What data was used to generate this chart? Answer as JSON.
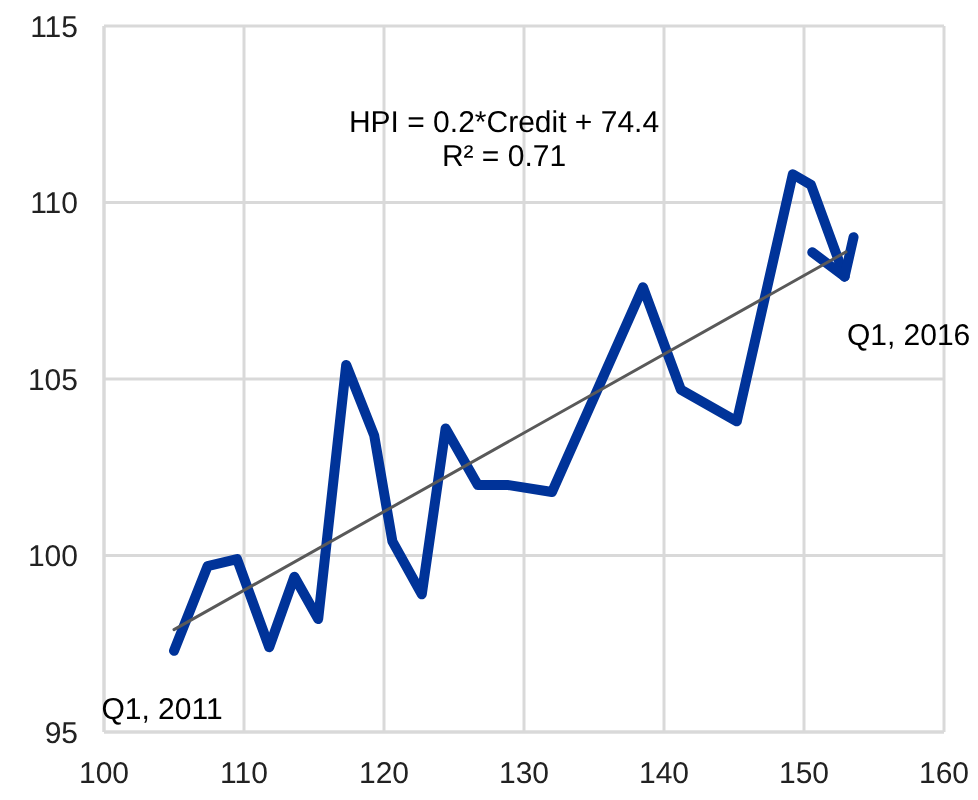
{
  "chart_data": {
    "type": "line",
    "xlim": [
      100,
      160
    ],
    "xticks": [
      100,
      110,
      120,
      130,
      140,
      150,
      160
    ],
    "ylim": [
      95,
      115
    ],
    "yticks": [
      95,
      100,
      105,
      110,
      115
    ],
    "grid": true,
    "series": [
      {
        "color": "#003399",
        "x": [
          105.0,
          107.4,
          109.5,
          111.8,
          113.6,
          115.3,
          117.3,
          119.3,
          120.6,
          122.7,
          124.4,
          126.7,
          128.8,
          132.0,
          138.5,
          141.2,
          145.2,
          149.2,
          150.5,
          152.9
        ],
        "values": [
          97.3,
          99.7,
          99.9,
          97.4,
          99.4,
          98.2,
          105.4,
          103.4,
          100.4,
          98.9,
          103.6,
          102.0,
          102.0,
          101.8,
          107.6,
          104.7,
          103.8,
          110.8,
          110.5,
          107.9
        ]
      },
      {
        "color": "#595959",
        "x": [
          105,
          153
        ],
        "values": [
          97.9,
          108.6
        ]
      }
    ],
    "annotations": [
      "HPI = 0.2*Credit + 74.4",
      "R² = 0.71",
      {
        "text": "Q1, 2011",
        "x": 105.0,
        "y": 97.3
      },
      {
        "text": "Q1, 2016",
        "x": 152.9,
        "y": 107.9
      }
    ]
  }
}
